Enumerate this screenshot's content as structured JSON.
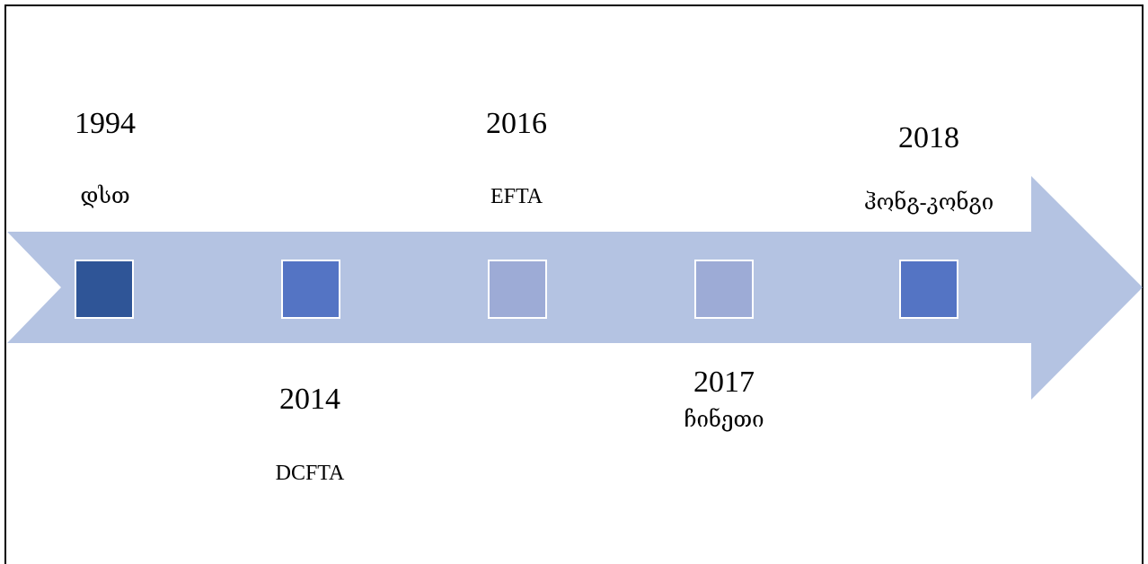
{
  "events": [
    {
      "year": "1994",
      "label": "დსთ",
      "color": "#2f5597"
    },
    {
      "year": "2014",
      "label": "DCFTA",
      "color": "#5474c4"
    },
    {
      "year": "2016",
      "label": "EFTA",
      "color": "#9dabd6"
    },
    {
      "year": "2017",
      "label": "ჩინეთი",
      "color": "#9dabd6"
    },
    {
      "year": "2018",
      "label": "ჰონგ-კონგი",
      "color": "#5474c4"
    }
  ]
}
